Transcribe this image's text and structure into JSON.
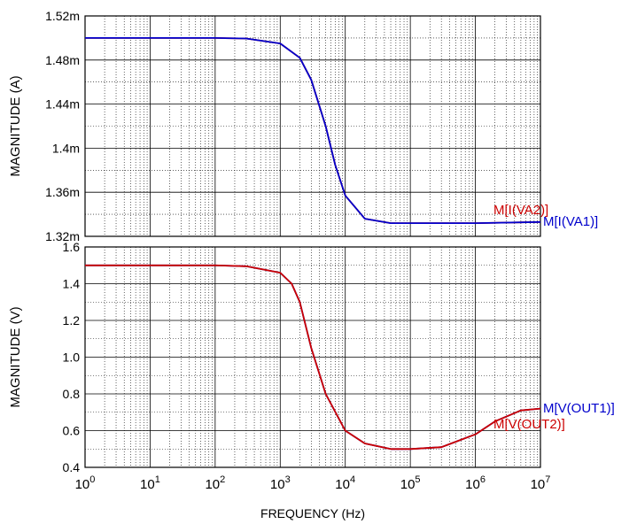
{
  "chart_data": [
    {
      "type": "line",
      "xscale": "log",
      "xlim": [
        1,
        10000000
      ],
      "ylim": [
        0.00132,
        0.00152
      ],
      "ylabel": "MAGNITUDE  (A)",
      "ytick_labels": [
        "1.32m",
        "1.36m",
        "1.4m",
        "1.44m",
        "1.48m",
        "1.52m"
      ],
      "yticks": [
        0.00132,
        0.00136,
        0.0014,
        0.00144,
        0.00148,
        0.00152
      ],
      "grid": true,
      "series": [
        {
          "name": "M[I(VA2)]",
          "color": "#cc0000",
          "x": [
            1,
            10,
            100,
            300,
            1000,
            2000,
            3000,
            5000,
            7000,
            10000,
            20000,
            50000,
            100000,
            1000000,
            10000000
          ],
          "y": [
            0.0015,
            0.0015,
            0.0015,
            0.0014995,
            0.001495,
            0.001482,
            0.001462,
            0.00142,
            0.001385,
            0.001357,
            0.001336,
            0.001332,
            0.001332,
            0.001332,
            0.001333
          ]
        },
        {
          "name": "M[I(VA1)]",
          "color": "#0000cc",
          "x": [
            1,
            10,
            100,
            300,
            1000,
            2000,
            3000,
            5000,
            7000,
            10000,
            20000,
            50000,
            100000,
            1000000,
            10000000
          ],
          "y": [
            0.0015,
            0.0015,
            0.0015,
            0.0014995,
            0.001495,
            0.001482,
            0.001462,
            0.00142,
            0.001385,
            0.001357,
            0.001336,
            0.001332,
            0.001332,
            0.001332,
            0.001333
          ]
        }
      ]
    },
    {
      "type": "line",
      "xscale": "log",
      "xlim": [
        1,
        10000000
      ],
      "ylim": [
        0.4,
        1.6
      ],
      "xlabel": "FREQUENCY  (Hz)",
      "ylabel": "MAGNITUDE  (V)",
      "ytick_labels": [
        "0.4",
        "0.6",
        "0.8",
        "1.0",
        "1.2",
        "1.4",
        "1.6"
      ],
      "yticks": [
        0.4,
        0.6,
        0.8,
        1.0,
        1.2,
        1.4,
        1.6
      ],
      "xtick_bases": [
        "10",
        "10",
        "10",
        "10",
        "10",
        "10",
        "10",
        "10"
      ],
      "xtick_exponents": [
        "0",
        "1",
        "2",
        "3",
        "4",
        "5",
        "6",
        "7"
      ],
      "grid": true,
      "series": [
        {
          "name": "M[V(OUT1)]",
          "color": "#0000cc",
          "x": [
            1,
            10,
            100,
            300,
            1000,
            1500,
            2000,
            3000,
            5000,
            10000,
            20000,
            50000,
            100000,
            300000,
            1000000,
            2000000,
            5000000,
            10000000
          ],
          "y": [
            1.5,
            1.5,
            1.5,
            1.495,
            1.46,
            1.4,
            1.3,
            1.05,
            0.8,
            0.6,
            0.53,
            0.5,
            0.5,
            0.51,
            0.58,
            0.65,
            0.71,
            0.72
          ]
        },
        {
          "name": "M[V(OUT2)]",
          "color": "#cc0000",
          "x": [
            1,
            10,
            100,
            300,
            1000,
            1500,
            2000,
            3000,
            5000,
            10000,
            20000,
            50000,
            100000,
            300000,
            1000000,
            2000000,
            5000000,
            10000000
          ],
          "y": [
            1.5,
            1.5,
            1.5,
            1.495,
            1.46,
            1.4,
            1.3,
            1.05,
            0.8,
            0.6,
            0.53,
            0.5,
            0.5,
            0.51,
            0.58,
            0.65,
            0.71,
            0.72
          ]
        }
      ]
    }
  ]
}
